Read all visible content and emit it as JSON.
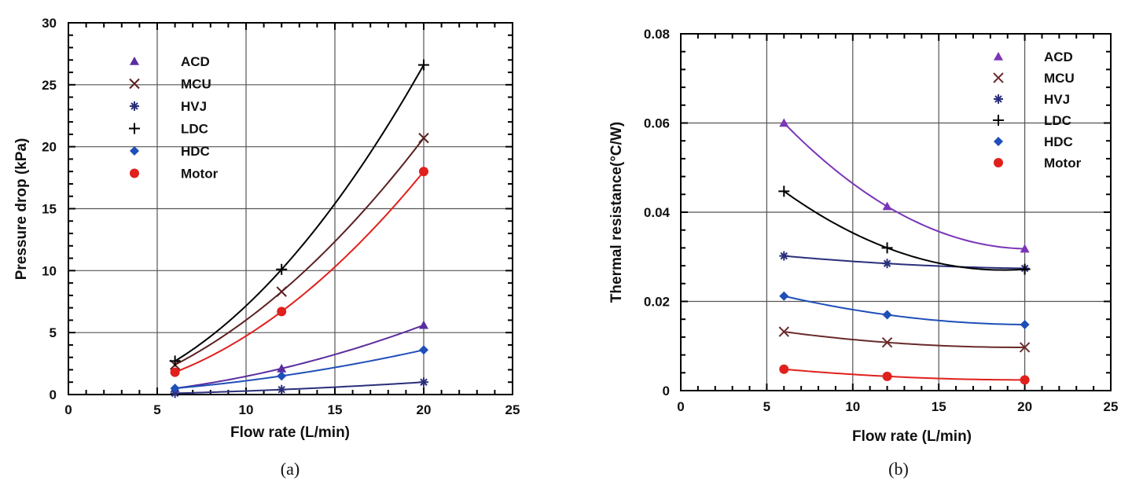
{
  "chart_data": [
    {
      "type": "line",
      "caption": "(a)",
      "xlabel": "Flow rate (L/min)",
      "ylabel": "Pressure drop (kPa)",
      "xlim": [
        0,
        25
      ],
      "ylim": [
        0,
        30
      ],
      "xticks": [
        "0",
        "5",
        "10",
        "15",
        "20",
        "25"
      ],
      "yticks": [
        "0",
        "5",
        "10",
        "15",
        "20",
        "25",
        "30"
      ],
      "grid": true,
      "legend_position": "top-left",
      "x": [
        6,
        12,
        20
      ],
      "series": [
        {
          "name": "ACD",
          "marker": "triangle",
          "color": "#5b2d9e",
          "values": [
            0.5,
            2.1,
            5.6
          ]
        },
        {
          "name": "MCU",
          "marker": "x",
          "color": "#5a2020",
          "values": [
            2.4,
            8.3,
            20.7
          ]
        },
        {
          "name": "HVJ",
          "marker": "asterisk",
          "color": "#2a2f7a",
          "values": [
            0.1,
            0.4,
            1.0
          ]
        },
        {
          "name": "LDC",
          "marker": "plus",
          "color": "#000000",
          "values": [
            2.7,
            10.1,
            26.6
          ]
        },
        {
          "name": "HDC",
          "marker": "diamond",
          "color": "#1f4fb8",
          "values": [
            0.5,
            1.5,
            3.6
          ]
        },
        {
          "name": "Motor",
          "marker": "circle",
          "color": "#e0201c",
          "values": [
            1.8,
            6.7,
            18.0
          ]
        }
      ]
    },
    {
      "type": "line",
      "caption": "(b)",
      "xlabel": "Flow rate (L/min)",
      "ylabel": "Thermal resistance(°C/W)",
      "xlim": [
        0,
        25
      ],
      "ylim": [
        0,
        0.08
      ],
      "xticks": [
        "0",
        "5",
        "10",
        "15",
        "20",
        "25"
      ],
      "yticks": [
        "0",
        "0.02",
        "0.04",
        "0.06",
        "0.08"
      ],
      "grid": true,
      "legend_position": "top-right",
      "x": [
        6,
        12,
        20
      ],
      "series": [
        {
          "name": "ACD",
          "marker": "triangle",
          "color": "#7a35b8",
          "values": [
            0.06,
            0.0413,
            0.0318
          ]
        },
        {
          "name": "MCU",
          "marker": "x",
          "color": "#6a2a2a",
          "values": [
            0.0132,
            0.0108,
            0.0097
          ]
        },
        {
          "name": "HVJ",
          "marker": "asterisk",
          "color": "#2a2f7a",
          "values": [
            0.0302,
            0.0285,
            0.0274
          ]
        },
        {
          "name": "LDC",
          "marker": "plus",
          "color": "#000000",
          "values": [
            0.0447,
            0.032,
            0.0272
          ]
        },
        {
          "name": "HDC",
          "marker": "diamond",
          "color": "#1f4fb8",
          "values": [
            0.0212,
            0.017,
            0.0148
          ]
        },
        {
          "name": "Motor",
          "marker": "circle",
          "color": "#e0201c",
          "values": [
            0.0048,
            0.0032,
            0.0024
          ]
        }
      ]
    }
  ]
}
